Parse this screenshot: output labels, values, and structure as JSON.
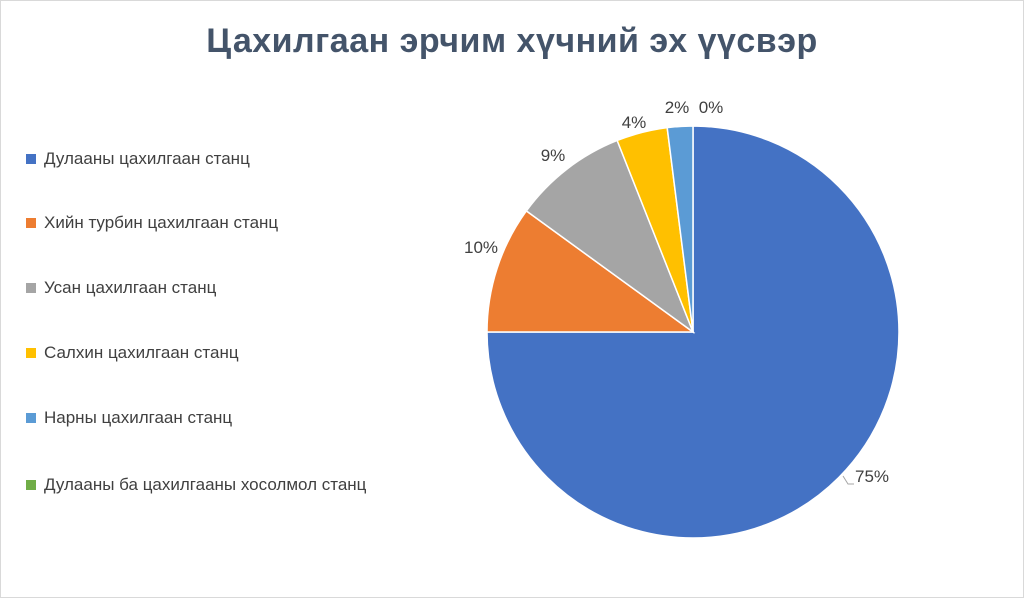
{
  "chart_data": {
    "type": "pie",
    "title": "Цахилгаан эрчим хүчний эх үүсвэр",
    "categories": [
      "Дулааны цахилгаан станц",
      "Хийн турбин цахилгаан станц",
      "Усан цахилгаан станц",
      "Салхин цахилгаан станц",
      "Нарны цахилгаан станц",
      "Дулааны ба цахилгааны хосолмол станц"
    ],
    "values": [
      75,
      10,
      9,
      4,
      2,
      0
    ],
    "data_labels": [
      "75%",
      "10%",
      "9%",
      "4%",
      "2%",
      "0%"
    ],
    "colors": [
      "#4472c4",
      "#ed7d31",
      "#a5a5a5",
      "#ffc000",
      "#5b9bd5",
      "#70ad47"
    ],
    "legend_position": "left"
  }
}
